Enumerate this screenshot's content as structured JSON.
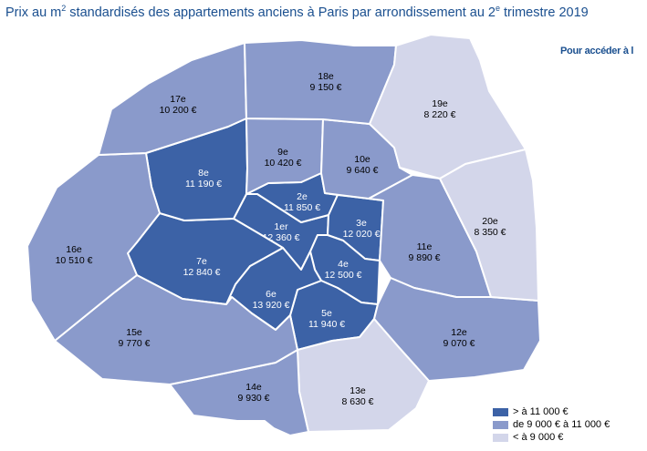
{
  "title": {
    "before": "Prix au m",
    "sup": "2",
    "after": " standardisés des appartements anciens à Paris par arrondissement au 2",
    "sup2": "e",
    "after2": " trimestre 2019"
  },
  "link_label": "Pour accéder à l",
  "colors": {
    "high": "#3c62a6",
    "mid": "#8a9acb",
    "low": "#d3d6ea",
    "text_dark_bg": "#ffffff",
    "text_light_bg": "#000000"
  },
  "arrondissements": [
    {
      "id": "1er",
      "name": "1er",
      "price": "12 360 €",
      "category": "high"
    },
    {
      "id": "2e",
      "name": "2e",
      "price": "11 850 €",
      "category": "high"
    },
    {
      "id": "3e",
      "name": "3e",
      "price": "12 020 €",
      "category": "high"
    },
    {
      "id": "4e",
      "name": "4e",
      "price": "12 500 €",
      "category": "high"
    },
    {
      "id": "5e",
      "name": "5e",
      "price": "11 940 €",
      "category": "high"
    },
    {
      "id": "6e",
      "name": "6e",
      "price": "13 920 €",
      "category": "high"
    },
    {
      "id": "7e",
      "name": "7e",
      "price": "12 840 €",
      "category": "high"
    },
    {
      "id": "8e",
      "name": "8e",
      "price": "11 190 €",
      "category": "high"
    },
    {
      "id": "9e",
      "name": "9e",
      "price": "10 420 €",
      "category": "mid"
    },
    {
      "id": "10e",
      "name": "10e",
      "price": "9 640 €",
      "category": "mid"
    },
    {
      "id": "11e",
      "name": "11e",
      "price": "9 890 €",
      "category": "mid"
    },
    {
      "id": "12e",
      "name": "12e",
      "price": "9 070 €",
      "category": "mid"
    },
    {
      "id": "13e",
      "name": "13e",
      "price": "8 630 €",
      "category": "low"
    },
    {
      "id": "14e",
      "name": "14e",
      "price": "9 930 €",
      "category": "mid"
    },
    {
      "id": "15e",
      "name": "15e",
      "price": "9 770 €",
      "category": "mid"
    },
    {
      "id": "16e",
      "name": "16e",
      "price": "10 510 €",
      "category": "mid"
    },
    {
      "id": "17e",
      "name": "17e",
      "price": "10 200 €",
      "category": "mid"
    },
    {
      "id": "18e",
      "name": "18e",
      "price": "9 150 €",
      "category": "mid"
    },
    {
      "id": "19e",
      "name": "19e",
      "price": "8 220 €",
      "category": "low"
    },
    {
      "id": "20e",
      "name": "20e",
      "price": "8 350 €",
      "category": "low"
    }
  ],
  "legend": [
    {
      "category": "high",
      "label": "> à 11 000 €"
    },
    {
      "category": "mid",
      "label": "de 9 000 € à 11 000 €"
    },
    {
      "category": "low",
      "label": "< à 9 000 €"
    }
  ]
}
